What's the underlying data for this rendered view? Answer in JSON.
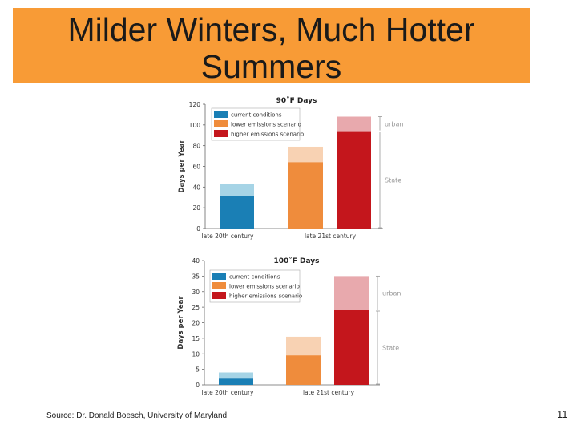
{
  "slide": {
    "title_line1": "Milder Winters, Much Hotter",
    "title_line2": "Summers",
    "source": "Source:  Dr. Donald Boesch, University of Maryland",
    "page_number": "11",
    "title_bar_color": "#f89b36"
  },
  "chart_data": [
    {
      "type": "bar",
      "title": "90˚F Days",
      "ylabel": "Days per Year",
      "ylim": [
        0,
        120
      ],
      "yticks": [
        0,
        20,
        40,
        60,
        80,
        100,
        120
      ],
      "categories": [
        "late 20th century",
        "late 21st century"
      ],
      "legend": [
        "current conditions",
        "lower emissions scenario",
        "higher emissions scenario"
      ],
      "legend_position": "top-left",
      "side_labels": [
        "urban",
        "State"
      ],
      "series": [
        {
          "name": "current conditions",
          "category": "late 20th century",
          "state": 31,
          "urban": 43,
          "color": "#1a7fb5",
          "urban_color": "#a6d4e6"
        },
        {
          "name": "lower emissions scenario",
          "category": "late 21st century",
          "state": 64,
          "urban": 79,
          "color": "#ef8c3c",
          "urban_color": "#f8d2b3"
        },
        {
          "name": "higher emissions scenario",
          "category": "late 21st century",
          "state": 94,
          "urban": 108,
          "color": "#c4161c",
          "urban_color": "#e8a9ad"
        }
      ],
      "grid": false
    },
    {
      "type": "bar",
      "title": "100˚F Days",
      "ylabel": "Days per Year",
      "ylim": [
        0,
        40
      ],
      "yticks": [
        0,
        5,
        10,
        15,
        20,
        25,
        30,
        35,
        40
      ],
      "categories": [
        "late 20th century",
        "late 21st century"
      ],
      "legend": [
        "current conditions",
        "lower emissions scenario",
        "higher emissions scenario"
      ],
      "legend_position": "top-left",
      "side_labels": [
        "urban",
        "State"
      ],
      "series": [
        {
          "name": "current conditions",
          "category": "late 20th century",
          "state": 2,
          "urban": 4,
          "color": "#1a7fb5",
          "urban_color": "#a6d4e6"
        },
        {
          "name": "lower emissions scenario",
          "category": "late 21st century",
          "state": 9.5,
          "urban": 15.5,
          "color": "#ef8c3c",
          "urban_color": "#f8d2b3"
        },
        {
          "name": "higher emissions scenario",
          "category": "late 21st century",
          "state": 24,
          "urban": 35,
          "color": "#c4161c",
          "urban_color": "#e8a9ad"
        }
      ],
      "grid": false
    }
  ]
}
